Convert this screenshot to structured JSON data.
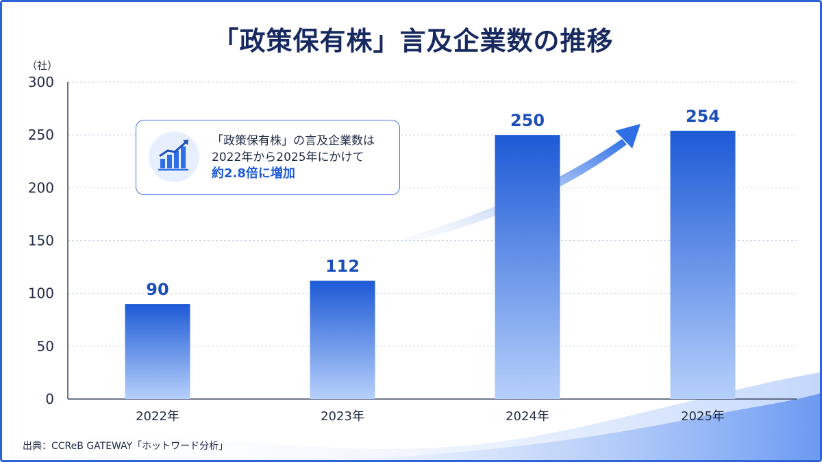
{
  "title": "「政策保有株」言及企業数の推移",
  "source": "出典：CCReB GATEWAY「ホットワード分析」",
  "callout": {
    "line1": "「政策保有株」の言及企業数は",
    "line2": "2022年から2025年にかけて",
    "highlight": "約2.8倍に増加",
    "icon": "growth-chart-icon"
  },
  "colors": {
    "bar_top": "#1d5ad6",
    "bar_bottom": "#b6d0fb",
    "label": "#1d4fb8",
    "accent": "#2d63d8"
  },
  "chart_data": {
    "type": "bar",
    "ylabel": "（社）",
    "categories": [
      "2022年",
      "2023年",
      "2024年",
      "2025年"
    ],
    "values": [
      90,
      112,
      250,
      254
    ],
    "ylim": [
      0,
      300
    ],
    "yticks": [
      0,
      50,
      100,
      150,
      200,
      250,
      300
    ],
    "grid": true,
    "trend_arrow": true
  }
}
